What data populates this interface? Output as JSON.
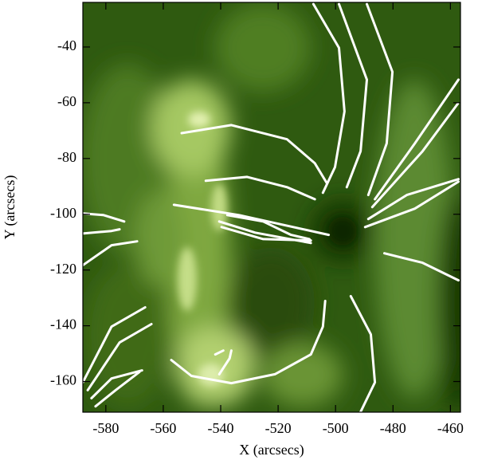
{
  "chart_data": {
    "type": "image",
    "xlabel": "X (arcsecs)",
    "ylabel": "Y (arcsecs)",
    "xlim": [
      -588,
      -456.5
    ],
    "ylim": [
      -171,
      -24
    ],
    "xticks": [
      -580,
      -560,
      -540,
      -520,
      -500,
      -480,
      -460
    ],
    "yticks": [
      -40,
      -60,
      -80,
      -100,
      -120,
      -140,
      -160
    ],
    "loop_color": "#ffffff",
    "loops": [
      {
        "x": [
          -507.7,
          -498.8,
          -496.9,
          -500.2,
          -504.4
        ],
        "y": [
          -24.6,
          -40.3,
          -63.1,
          -83.1,
          -92.3
        ]
      },
      {
        "x": [
          -498.8,
          -489.1,
          -491.3,
          -496.1
        ],
        "y": [
          -24.6,
          -51.7,
          -77.4,
          -90.3
        ]
      },
      {
        "x": [
          -489.1,
          -480.2,
          -482.2,
          -488.6
        ],
        "y": [
          -24.6,
          -48.9,
          -74.6,
          -93.1
        ]
      },
      {
        "x": [
          -553.6,
          -536.3,
          -516.9,
          -507.2,
          -503
        ],
        "y": [
          -70.9,
          -68,
          -73.1,
          -81.7,
          -88.9
        ]
      },
      {
        "x": [
          -545.2,
          -530.8,
          -516.9,
          -507.2
        ],
        "y": [
          -88,
          -86.6,
          -90.3,
          -94.6
        ]
      },
      {
        "x": [
          -556.3,
          -533.6,
          -502.4
        ],
        "y": [
          -96.6,
          -100.3,
          -107.4
        ]
      },
      {
        "x": [
          -537.7,
          -525.2,
          -515.5,
          -509.1
        ],
        "y": [
          -100.3,
          -102.6,
          -107.4,
          -108.9
        ]
      },
      {
        "x": [
          -540.5,
          -528,
          -508.6
        ],
        "y": [
          -102.6,
          -106.6,
          -110.3
        ]
      },
      {
        "x": [
          -539.7,
          -525.2,
          -508.6
        ],
        "y": [
          -104.6,
          -108.9,
          -109.4
        ]
      },
      {
        "x": [
          -588,
          -580.8,
          -573.6
        ],
        "y": [
          -99.7,
          -100.3,
          -102.6
        ]
      },
      {
        "x": [
          -588,
          -578,
          -575.2
        ],
        "y": [
          -106.9,
          -106,
          -105.4
        ]
      },
      {
        "x": [
          -588,
          -578,
          -569.1
        ],
        "y": [
          -118.3,
          -111.1,
          -109.7
        ]
      },
      {
        "x": [
          -486.3,
          -472.4,
          -457.2
        ],
        "y": [
          -94.6,
          -74.6,
          -51.7
        ]
      },
      {
        "x": [
          -487.2,
          -469.7,
          -457.4
        ],
        "y": [
          -97.4,
          -77.4,
          -60.3
        ]
      },
      {
        "x": [
          -488.6,
          -475.2,
          -457.2
        ],
        "y": [
          -101.7,
          -93.1,
          -87.4
        ]
      },
      {
        "x": [
          -489.7,
          -472.4,
          -457.2
        ],
        "y": [
          -104.6,
          -98,
          -88.3
        ]
      },
      {
        "x": [
          -483,
          -469.7,
          -457.2
        ],
        "y": [
          -114,
          -117.4,
          -123.7
        ]
      },
      {
        "x": [
          -494.7,
          -487.7,
          -486.3,
          -491.3
        ],
        "y": [
          -129.4,
          -143.1,
          -160.3,
          -170.9
        ]
      },
      {
        "x": [
          -557.2,
          -550.2,
          -536.3,
          -521.1,
          -508.6,
          -504.4,
          -503.6
        ],
        "y": [
          -152.3,
          -158,
          -160.6,
          -157.4,
          -150.3,
          -140.3,
          -131.1
        ]
      },
      {
        "x": [
          -588,
          -578,
          -566.3
        ],
        "y": [
          -160.3,
          -140.3,
          -133.4
        ]
      },
      {
        "x": [
          -586.3,
          -575.2,
          -564.1
        ],
        "y": [
          -163.1,
          -146,
          -139.4
        ]
      },
      {
        "x": [
          -585,
          -578,
          -567.4
        ],
        "y": [
          -166,
          -158.9,
          -156
        ]
      },
      {
        "x": [
          -583.6,
          -576.6,
          -568.3
        ],
        "y": [
          -168.9,
          -163.1,
          -156.6
        ]
      },
      {
        "x": [
          -541.9,
          -539.1
        ],
        "y": [
          -150.3,
          -148.9
        ]
      },
      {
        "x": [
          -540.5,
          -536.9,
          -536.3
        ],
        "y": [
          -157.4,
          -151.7,
          -148.9
        ]
      }
    ]
  }
}
